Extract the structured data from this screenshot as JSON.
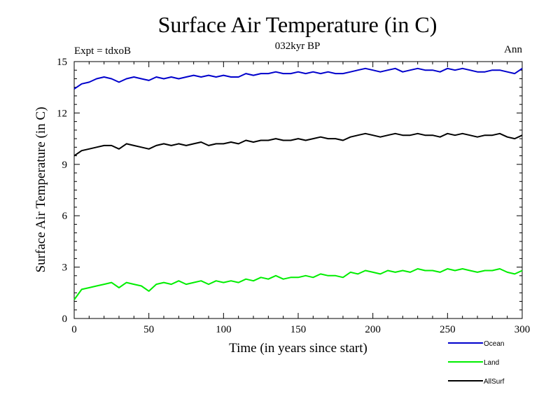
{
  "chart_data": {
    "type": "line",
    "title": "Surface Air Temperature (in C)",
    "subtitle": "032kyr BP",
    "experiment_label": "Expt = tdxoB",
    "season_label": "Ann",
    "xlabel": "Time (in years since start)",
    "ylabel": "Surface Air Temperature (in C)",
    "xlim": [
      0,
      300
    ],
    "ylim": [
      0,
      15
    ],
    "x_ticks": [
      0,
      50,
      100,
      150,
      200,
      250,
      300
    ],
    "x_tick_labels": [
      "0",
      "50",
      "100",
      "150",
      "200",
      "250",
      "300"
    ],
    "y_ticks": [
      0,
      3,
      6,
      9,
      12,
      15
    ],
    "y_tick_labels": [
      "0",
      "3",
      "6",
      "9",
      "12",
      "15"
    ],
    "grid": false,
    "legend_position": "bottom-right",
    "series": [
      {
        "name": "Ocean",
        "color": "#0000cc",
        "x": [
          0,
          5,
          10,
          15,
          20,
          25,
          30,
          35,
          40,
          45,
          50,
          55,
          60,
          65,
          70,
          75,
          80,
          85,
          90,
          95,
          100,
          105,
          110,
          115,
          120,
          125,
          130,
          135,
          140,
          145,
          150,
          155,
          160,
          165,
          170,
          175,
          180,
          185,
          190,
          195,
          200,
          205,
          210,
          215,
          220,
          225,
          230,
          235,
          240,
          245,
          250,
          255,
          260,
          265,
          270,
          275,
          280,
          285,
          290,
          295,
          300
        ],
        "values": [
          13.4,
          13.7,
          13.8,
          14.0,
          14.1,
          14.0,
          13.8,
          14.0,
          14.1,
          14.0,
          13.9,
          14.1,
          14.0,
          14.1,
          14.0,
          14.1,
          14.2,
          14.1,
          14.2,
          14.1,
          14.2,
          14.1,
          14.1,
          14.3,
          14.2,
          14.3,
          14.3,
          14.4,
          14.3,
          14.3,
          14.4,
          14.3,
          14.4,
          14.3,
          14.4,
          14.3,
          14.3,
          14.4,
          14.5,
          14.6,
          14.5,
          14.4,
          14.5,
          14.6,
          14.4,
          14.5,
          14.6,
          14.5,
          14.5,
          14.4,
          14.6,
          14.5,
          14.6,
          14.5,
          14.4,
          14.4,
          14.5,
          14.5,
          14.4,
          14.3,
          14.6
        ]
      },
      {
        "name": "Land",
        "color": "#00ee00",
        "x": [
          0,
          5,
          10,
          15,
          20,
          25,
          30,
          35,
          40,
          45,
          50,
          55,
          60,
          65,
          70,
          75,
          80,
          85,
          90,
          95,
          100,
          105,
          110,
          115,
          120,
          125,
          130,
          135,
          140,
          145,
          150,
          155,
          160,
          165,
          170,
          175,
          180,
          185,
          190,
          195,
          200,
          205,
          210,
          215,
          220,
          225,
          230,
          235,
          240,
          245,
          250,
          255,
          260,
          265,
          270,
          275,
          280,
          285,
          290,
          295,
          300
        ],
        "values": [
          1.1,
          1.7,
          1.8,
          1.9,
          2.0,
          2.1,
          1.8,
          2.1,
          2.0,
          1.9,
          1.6,
          2.0,
          2.1,
          2.0,
          2.2,
          2.0,
          2.1,
          2.2,
          2.0,
          2.2,
          2.1,
          2.2,
          2.1,
          2.3,
          2.2,
          2.4,
          2.3,
          2.5,
          2.3,
          2.4,
          2.4,
          2.5,
          2.4,
          2.6,
          2.5,
          2.5,
          2.4,
          2.7,
          2.6,
          2.8,
          2.7,
          2.6,
          2.8,
          2.7,
          2.8,
          2.7,
          2.9,
          2.8,
          2.8,
          2.7,
          2.9,
          2.8,
          2.9,
          2.8,
          2.7,
          2.8,
          2.8,
          2.9,
          2.7,
          2.6,
          2.8
        ]
      },
      {
        "name": "AllSurf",
        "color": "#000000",
        "x": [
          0,
          5,
          10,
          15,
          20,
          25,
          30,
          35,
          40,
          45,
          50,
          55,
          60,
          65,
          70,
          75,
          80,
          85,
          90,
          95,
          100,
          105,
          110,
          115,
          120,
          125,
          130,
          135,
          140,
          145,
          150,
          155,
          160,
          165,
          170,
          175,
          180,
          185,
          190,
          195,
          200,
          205,
          210,
          215,
          220,
          225,
          230,
          235,
          240,
          245,
          250,
          255,
          260,
          265,
          270,
          275,
          280,
          285,
          290,
          295,
          300
        ],
        "values": [
          9.5,
          9.8,
          9.9,
          10.0,
          10.1,
          10.1,
          9.9,
          10.2,
          10.1,
          10.0,
          9.9,
          10.1,
          10.2,
          10.1,
          10.2,
          10.1,
          10.2,
          10.3,
          10.1,
          10.2,
          10.2,
          10.3,
          10.2,
          10.4,
          10.3,
          10.4,
          10.4,
          10.5,
          10.4,
          10.4,
          10.5,
          10.4,
          10.5,
          10.6,
          10.5,
          10.5,
          10.4,
          10.6,
          10.7,
          10.8,
          10.7,
          10.6,
          10.7,
          10.8,
          10.7,
          10.7,
          10.8,
          10.7,
          10.7,
          10.6,
          10.8,
          10.7,
          10.8,
          10.7,
          10.6,
          10.7,
          10.7,
          10.8,
          10.6,
          10.5,
          10.7
        ]
      }
    ]
  }
}
